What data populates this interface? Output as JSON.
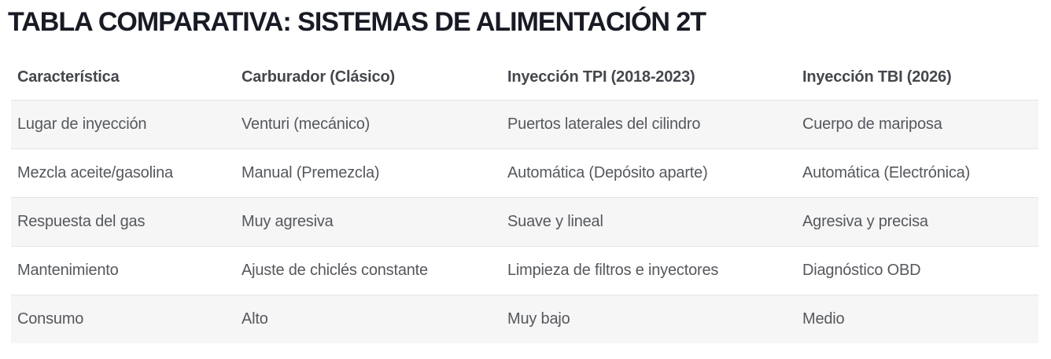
{
  "page": {
    "title": "TABLA COMPARATIVA: SISTEMAS DE ALIMENTACIÓN 2T"
  },
  "table": {
    "columns": [
      "Característica",
      "Carburador (Clásico)",
      "Inyección TPI (2018-2023)",
      "Inyección TBI (2026)"
    ],
    "rows": [
      [
        "Lugar de inyección",
        "Venturi (mecánico)",
        "Puertos laterales del cilindro",
        "Cuerpo de mariposa"
      ],
      [
        "Mezcla aceite/gasolina",
        "Manual (Premezcla)",
        "Automática (Depósito aparte)",
        "Automática (Electrónica)"
      ],
      [
        "Respuesta del gas",
        "Muy agresiva",
        "Suave y lineal",
        "Agresiva y precisa"
      ],
      [
        "Mantenimiento",
        "Ajuste de chiclés constante",
        "Limpieza de filtros e inyectores",
        "Diagnóstico OBD"
      ],
      [
        "Consumo",
        "Alto",
        "Muy bajo",
        "Medio"
      ]
    ]
  },
  "colors": {
    "title_text": "#181a24",
    "header_text": "#44474c",
    "body_text": "#55585c",
    "stripe_background": "#f6f6f7",
    "row_border": "#e4e4e6"
  }
}
